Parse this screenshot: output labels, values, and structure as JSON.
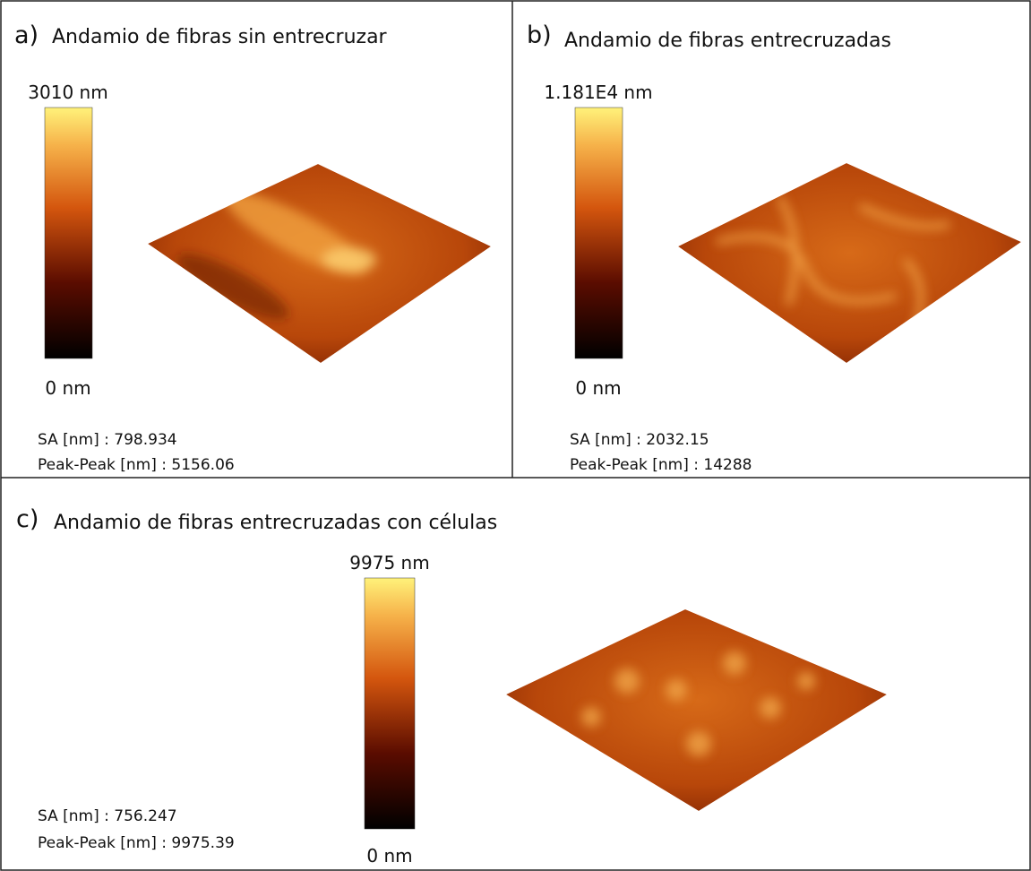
{
  "panels": [
    {
      "label": "a)",
      "title": "Andamio de fibras sin entrecruzar",
      "colorbar": {
        "max": "3010 nm",
        "min": "0 nm"
      },
      "stats": [
        "SA [nm] : 798.934",
        "Peak-Peak [nm] : 5156.06"
      ]
    },
    {
      "label": "b)",
      "title": "Andamio de fibras entrecruzadas",
      "colorbar": {
        "max": "1.181E4 nm",
        "min": "0 nm"
      },
      "stats": [
        "SA [nm] : 2032.15",
        "Peak-Peak [nm] : 14288"
      ]
    },
    {
      "label": "c)",
      "title": "Andamio de fibras entrecruzadas con células",
      "colorbar": {
        "max": "9975 nm",
        "min": "0 nm"
      },
      "stats": [
        "SA [nm] : 756.247",
        "Peak-Peak [nm] : 9975.39"
      ]
    }
  ]
}
